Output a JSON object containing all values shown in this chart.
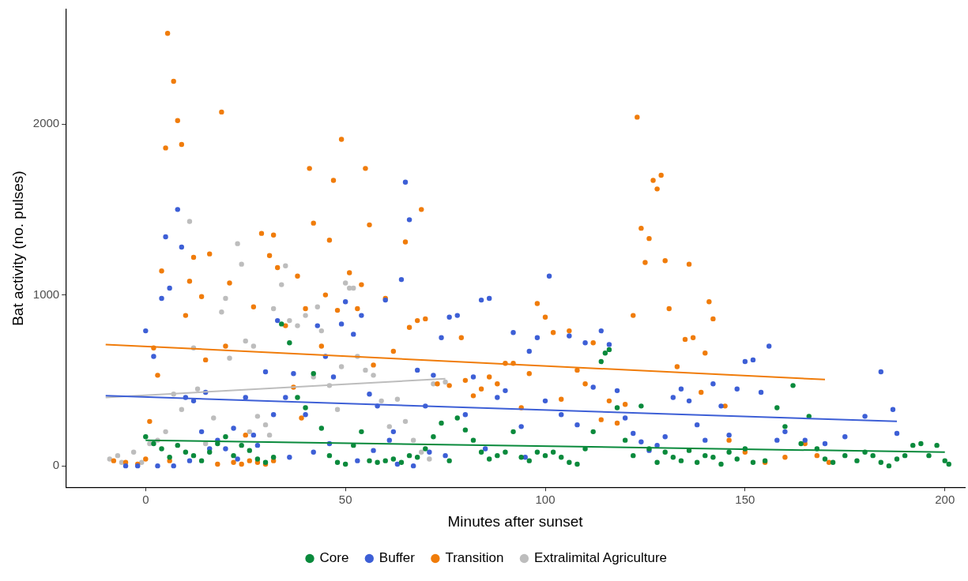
{
  "chart_data": {
    "type": "scatter",
    "xlabel": "Minutes after sunset",
    "ylabel": "Bat activity (no. pulses)",
    "xlim": [
      -20,
      205
    ],
    "xticks": [
      0,
      50,
      100,
      150,
      200
    ],
    "ylim": [
      -125,
      2670
    ],
    "yticks": [
      0,
      1000,
      2000
    ],
    "grid": false,
    "legend": "bottom",
    "marker": "circle",
    "series": [
      {
        "name": "Core",
        "color": "#0a8a3c",
        "x": [
          0,
          2,
          4,
          6,
          8,
          10,
          12,
          14,
          16,
          18,
          20,
          22,
          24,
          26,
          28,
          30,
          32,
          34,
          36,
          38,
          40,
          42,
          44,
          46,
          48,
          50,
          52,
          54,
          56,
          58,
          60,
          62,
          64,
          66,
          68,
          70,
          72,
          74,
          76,
          78,
          80,
          82,
          84,
          86,
          88,
          90,
          92,
          94,
          96,
          98,
          100,
          102,
          104,
          106,
          108,
          110,
          112,
          114,
          115,
          116,
          118,
          120,
          122,
          124,
          126,
          128,
          130,
          132,
          134,
          136,
          138,
          140,
          142,
          144,
          146,
          148,
          150,
          152,
          155,
          158,
          160,
          162,
          164,
          166,
          168,
          170,
          172,
          175,
          178,
          180,
          182,
          184,
          186,
          188,
          190,
          192,
          194,
          196,
          198,
          200,
          201
        ],
        "values": [
          170,
          130,
          100,
          50,
          120,
          80,
          60,
          30,
          80,
          130,
          170,
          60,
          120,
          90,
          40,
          20,
          50,
          830,
          720,
          400,
          340,
          540,
          220,
          60,
          20,
          10,
          120,
          200,
          30,
          20,
          30,
          40,
          20,
          60,
          50,
          100,
          170,
          250,
          30,
          280,
          210,
          150,
          80,
          40,
          60,
          80,
          200,
          50,
          30,
          80,
          60,
          80,
          50,
          20,
          10,
          100,
          200,
          610,
          660,
          680,
          340,
          150,
          60,
          350,
          100,
          20,
          80,
          50,
          30,
          90,
          20,
          60,
          50,
          10,
          80,
          40,
          100,
          20,
          30,
          340,
          230,
          470,
          130,
          290,
          100,
          40,
          20,
          60,
          30,
          80,
          60,
          20,
          0,
          40,
          60,
          120,
          130,
          60,
          120,
          30,
          10
        ]
      },
      {
        "name": "Buffer",
        "color": "#3d5fd6",
        "x": [
          8,
          5,
          9,
          6,
          4,
          0,
          2,
          10,
          12,
          14,
          15,
          18,
          20,
          23,
          25,
          28,
          30,
          33,
          35,
          37,
          40,
          43,
          45,
          47,
          49,
          50,
          52,
          54,
          56,
          58,
          60,
          62,
          64,
          65,
          66,
          68,
          70,
          72,
          74,
          76,
          78,
          80,
          82,
          84,
          86,
          88,
          90,
          92,
          94,
          96,
          98,
          100,
          101,
          104,
          106,
          108,
          110,
          112,
          114,
          116,
          118,
          120,
          122,
          124,
          126,
          128,
          130,
          132,
          134,
          136,
          138,
          140,
          142,
          144,
          146,
          148,
          150,
          152,
          154,
          156,
          158,
          160,
          165,
          170,
          175,
          180,
          184,
          187,
          188,
          -5,
          -2,
          3,
          7,
          11,
          16,
          22,
          27,
          32,
          36,
          42,
          46,
          53,
          57,
          61,
          63,
          67,
          71,
          75,
          85,
          95
        ],
        "values": [
          1500,
          1340,
          1280,
          1040,
          980,
          790,
          640,
          400,
          380,
          200,
          430,
          150,
          100,
          40,
          400,
          120,
          550,
          850,
          400,
          540,
          300,
          820,
          640,
          520,
          830,
          960,
          770,
          880,
          420,
          350,
          970,
          200,
          1090,
          1660,
          1440,
          560,
          350,
          530,
          750,
          870,
          880,
          300,
          520,
          970,
          980,
          400,
          440,
          780,
          230,
          670,
          750,
          380,
          1110,
          300,
          760,
          240,
          720,
          460,
          790,
          710,
          440,
          280,
          190,
          140,
          90,
          120,
          170,
          400,
          450,
          380,
          240,
          150,
          480,
          350,
          180,
          450,
          610,
          620,
          430,
          700,
          150,
          200,
          150,
          130,
          170,
          290,
          550,
          330,
          190,
          0,
          0,
          0,
          0,
          30,
          100,
          220,
          180,
          300,
          50,
          80,
          130,
          30,
          90,
          150,
          10,
          0,
          80,
          60,
          100,
          50
        ]
      },
      {
        "name": "Transition",
        "color": "#f07c0a",
        "x": [
          5.5,
          7,
          8,
          9,
          5,
          19,
          49,
          55,
          41,
          47,
          69,
          65,
          56,
          29,
          32,
          42,
          46,
          51,
          33,
          11,
          12,
          16,
          21,
          27,
          10,
          38,
          40,
          45,
          48,
          53,
          54,
          60,
          68,
          70,
          79,
          82,
          86,
          90,
          96,
          98,
          100,
          102,
          106,
          108,
          112,
          116,
          118,
          120,
          122,
          123,
          124,
          125,
          126,
          127,
          128,
          129,
          130,
          131,
          133,
          135,
          136,
          137,
          139,
          140,
          141,
          142,
          145,
          146,
          150,
          155,
          160,
          165,
          168,
          171,
          2,
          3,
          4,
          1,
          -8,
          -5,
          -2,
          0,
          6,
          14,
          18,
          22,
          24,
          26,
          28,
          30,
          32,
          35,
          37,
          39,
          44,
          57,
          62,
          66,
          73,
          76,
          80,
          84,
          88,
          92,
          94,
          104,
          110,
          114,
          25,
          15,
          20,
          31
        ],
        "values": [
          2530,
          2250,
          2020,
          1880,
          1860,
          2070,
          1910,
          1740,
          1740,
          1670,
          1500,
          1310,
          1410,
          1360,
          1350,
          1420,
          1320,
          1130,
          1160,
          1080,
          1220,
          1240,
          1070,
          930,
          880,
          1110,
          920,
          1000,
          910,
          920,
          1060,
          980,
          850,
          860,
          750,
          410,
          520,
          600,
          540,
          950,
          870,
          780,
          790,
          560,
          720,
          380,
          250,
          360,
          880,
          2040,
          1390,
          1190,
          1330,
          1670,
          1620,
          1700,
          1200,
          920,
          580,
          740,
          1180,
          750,
          430,
          660,
          960,
          860,
          350,
          150,
          80,
          20,
          50,
          130,
          60,
          20,
          690,
          530,
          1140,
          260,
          30,
          20,
          10,
          40,
          30,
          990,
          10,
          20,
          10,
          30,
          20,
          10,
          30,
          820,
          460,
          280,
          700,
          590,
          670,
          810,
          480,
          470,
          500,
          450,
          480,
          600,
          340,
          390,
          480,
          270,
          180,
          620,
          700,
          1230
        ]
      },
      {
        "name": "Extralimital Agriculture",
        "color": "#bdbdbd",
        "x": [
          -9,
          -7,
          -6,
          -3,
          -1,
          1,
          3,
          5,
          7,
          9,
          11,
          12,
          13,
          15,
          17,
          19,
          20,
          21,
          23,
          24,
          25,
          26,
          28,
          30,
          32,
          34,
          35,
          36,
          38,
          40,
          42,
          44,
          46,
          48,
          50,
          51,
          52,
          53,
          55,
          57,
          59,
          61,
          63,
          65,
          67,
          69,
          71,
          72,
          75,
          27,
          31,
          43,
          49
        ],
        "values": [
          40,
          60,
          20,
          80,
          20,
          130,
          150,
          200,
          420,
          330,
          1430,
          690,
          450,
          130,
          280,
          900,
          980,
          630,
          1300,
          1180,
          730,
          200,
          290,
          240,
          920,
          1060,
          1170,
          850,
          820,
          880,
          520,
          790,
          470,
          330,
          1070,
          1040,
          1040,
          640,
          560,
          530,
          380,
          230,
          390,
          260,
          150,
          80,
          40,
          480,
          490,
          700,
          180,
          930,
          580
        ]
      },
      {
        "type": "line",
        "marker": "none",
        "color": "#0a8a3c",
        "x": [
          0,
          200
        ],
        "values": [
          150,
          80
        ]
      },
      {
        "type": "line",
        "marker": "none",
        "color": "#3d5fd6",
        "x": [
          -10,
          188
        ],
        "values": [
          410,
          260
        ]
      },
      {
        "type": "line",
        "marker": "none",
        "color": "#f07c0a",
        "x": [
          -10,
          170
        ],
        "values": [
          710,
          505
        ]
      },
      {
        "type": "line",
        "marker": "none",
        "color": "#bdbdbd",
        "x": [
          -10,
          75
        ],
        "values": [
          400,
          510
        ]
      }
    ]
  }
}
